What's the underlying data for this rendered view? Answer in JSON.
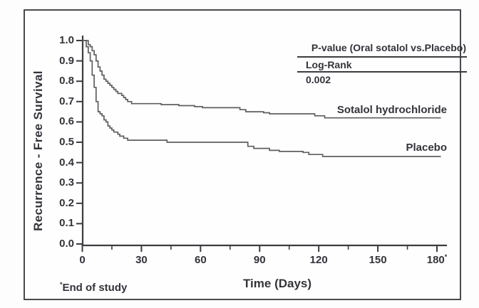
{
  "y_axis": {
    "title": "Recurrence - Free Survival",
    "tick_labels": [
      "1.0",
      "0.9",
      "0.8",
      "0.7",
      "0.6",
      "0.5",
      "0.4",
      "0.3",
      "0.2",
      "0.1",
      "0.0"
    ]
  },
  "x_axis": {
    "title": "Time (Days)",
    "tick_labels": [
      "0",
      "30",
      "60",
      "90",
      "120",
      "150",
      "180*"
    ],
    "minor_ticks": [
      15,
      45,
      75,
      105,
      135,
      165
    ]
  },
  "annotation": {
    "title": "P-value (Oral sotalol vs.Placebo)",
    "test_label": "Log-Rank",
    "p_value": "0.002"
  },
  "series_labels": {
    "sotalol": "Sotalol hydrochloride",
    "placebo": "Placebo"
  },
  "footnote": {
    "marker": "*",
    "text": "End of study"
  },
  "colors": {
    "curve": "#5f5f5f",
    "axis": "#3c3c40",
    "text": "#33333a",
    "border": "#4a4a4e"
  },
  "chart_data": {
    "type": "line",
    "subtype": "kaplan-meier-step",
    "title": "",
    "xlabel": "Time (Days)",
    "ylabel": "Recurrence - Free Survival",
    "xlim": [
      0,
      183
    ],
    "ylim": [
      0.0,
      1.0
    ],
    "x_ticks": [
      0,
      30,
      60,
      90,
      120,
      150,
      180
    ],
    "y_ticks": [
      0.0,
      0.1,
      0.2,
      0.3,
      0.4,
      0.5,
      0.6,
      0.7,
      0.8,
      0.9,
      1.0
    ],
    "grid": false,
    "legend_position": "curve-labels-right",
    "p_value": 0.002,
    "statistical_test": "Log-Rank",
    "end_of_study_day": 180,
    "series": [
      {
        "name": "Sotalol hydrochloride",
        "points": [
          [
            0,
            1.0
          ],
          [
            3,
            0.98
          ],
          [
            4,
            0.97
          ],
          [
            5,
            0.95
          ],
          [
            6,
            0.93
          ],
          [
            7,
            0.9
          ],
          [
            8,
            0.87
          ],
          [
            9,
            0.85
          ],
          [
            10,
            0.83
          ],
          [
            11,
            0.81
          ],
          [
            12,
            0.8
          ],
          [
            13,
            0.79
          ],
          [
            14,
            0.78
          ],
          [
            15,
            0.77
          ],
          [
            16,
            0.76
          ],
          [
            17,
            0.75
          ],
          [
            18,
            0.74
          ],
          [
            20,
            0.73
          ],
          [
            21,
            0.72
          ],
          [
            22,
            0.71
          ],
          [
            23,
            0.7
          ],
          [
            25,
            0.69
          ],
          [
            40,
            0.685
          ],
          [
            49,
            0.68
          ],
          [
            57,
            0.675
          ],
          [
            61,
            0.67
          ],
          [
            80,
            0.66
          ],
          [
            83,
            0.65
          ],
          [
            92,
            0.645
          ],
          [
            95,
            0.64
          ],
          [
            118,
            0.63
          ],
          [
            123,
            0.62
          ]
        ],
        "end_x": 182,
        "final_value": 0.62
      },
      {
        "name": "Placebo",
        "points": [
          [
            0,
            1.0
          ],
          [
            2,
            0.97
          ],
          [
            3,
            0.94
          ],
          [
            4,
            0.9
          ],
          [
            5,
            0.83
          ],
          [
            6,
            0.77
          ],
          [
            7,
            0.7
          ],
          [
            8,
            0.65
          ],
          [
            9,
            0.64
          ],
          [
            10,
            0.63
          ],
          [
            11,
            0.61
          ],
          [
            12,
            0.6
          ],
          [
            13,
            0.58
          ],
          [
            14,
            0.57
          ],
          [
            15,
            0.56
          ],
          [
            16,
            0.55
          ],
          [
            18,
            0.54
          ],
          [
            19,
            0.53
          ],
          [
            21,
            0.52
          ],
          [
            23,
            0.51
          ],
          [
            43,
            0.5
          ],
          [
            84,
            0.48
          ],
          [
            87,
            0.47
          ],
          [
            95,
            0.46
          ],
          [
            100,
            0.455
          ],
          [
            112,
            0.45
          ],
          [
            115,
            0.44
          ],
          [
            122,
            0.43
          ]
        ],
        "end_x": 182,
        "final_value": 0.43
      }
    ]
  }
}
